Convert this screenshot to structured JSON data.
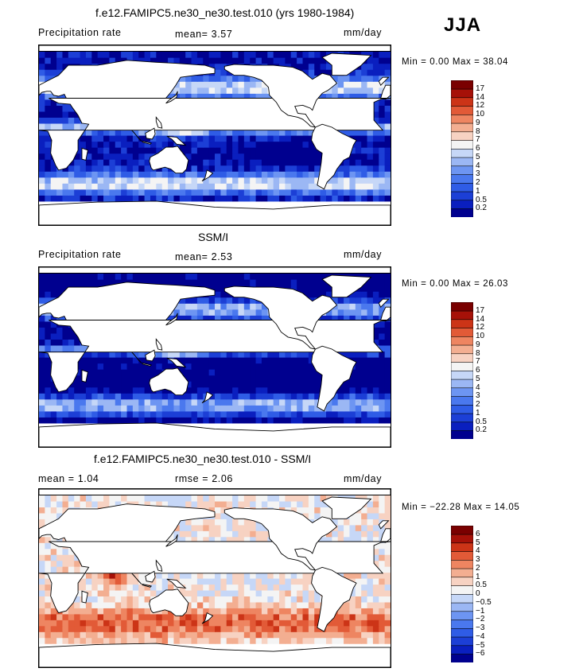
{
  "season": "JJA",
  "panels": [
    {
      "title": "f.e12.FAMIPC5.ne30_ne30.test.010 (yrs 1980-1984)",
      "left_label": "Precipitation rate",
      "mean_label": "mean=   3.57",
      "units": "mm/day",
      "minmax": "Min =    0.00 Max =  38.04",
      "field": "model"
    },
    {
      "title": "SSM/I",
      "left_label": "Precipitation rate",
      "mean_label": "mean=   2.53",
      "units": "mm/day",
      "minmax": "Min =    0.00 Max =  26.03",
      "field": "obs"
    },
    {
      "title": "f.e12.FAMIPC5.ne30_ne30.test.010 - SSM/I",
      "left_label": "mean =   1.04",
      "mean_label": "rmse =   2.06",
      "units": "mm/day",
      "minmax": "Min = −22.28 Max =  14.05",
      "field": "diff"
    }
  ],
  "chart_data": [
    {
      "type": "heatmap",
      "title": "f.e12.FAMIPC5.ne30_ne30.test.010 (yrs 1980-1984)",
      "variable": "Precipitation rate",
      "units": "mm/day",
      "mean": 3.57,
      "min": 0.0,
      "max": 38.04,
      "colorbar_levels": [
        "0.2",
        "0.5",
        "1",
        "2",
        "3",
        "4",
        "5",
        "6",
        "7",
        "8",
        "9",
        "10",
        "12",
        "14",
        "17"
      ]
    },
    {
      "type": "heatmap",
      "title": "SSM/I",
      "variable": "Precipitation rate",
      "units": "mm/day",
      "mean": 2.53,
      "min": 0.0,
      "max": 26.03,
      "colorbar_levels": [
        "0.2",
        "0.5",
        "1",
        "2",
        "3",
        "4",
        "5",
        "6",
        "7",
        "8",
        "9",
        "10",
        "12",
        "14",
        "17"
      ]
    },
    {
      "type": "heatmap",
      "title": "f.e12.FAMIPC5.ne30_ne30.test.010 - SSM/I",
      "units": "mm/day",
      "mean": 1.04,
      "rmse": 2.06,
      "min": -22.28,
      "max": 14.05,
      "colorbar_levels": [
        "−6",
        "−5",
        "−4",
        "−3",
        "−2",
        "−1",
        "−0.5",
        "0",
        "0.5",
        "1",
        "2",
        "3",
        "4",
        "5",
        "6"
      ]
    }
  ],
  "colors": {
    "precip": [
      "#00008f",
      "#0a1fbf",
      "#1c3fd6",
      "#2f5ce6",
      "#4a78ee",
      "#6d95f2",
      "#9bb7f4",
      "#c6d7f7",
      "#f4f4f4",
      "#f7d2c2",
      "#f3ae91",
      "#ee8561",
      "#e25a37",
      "#cc3417",
      "#a61108",
      "#7a0000"
    ],
    "diff": [
      "#00008f",
      "#0a1fbf",
      "#1c3fd6",
      "#2f5ce6",
      "#4a78ee",
      "#6d95f2",
      "#9bb7f4",
      "#c6d7f7",
      "#f4f4f4",
      "#f7d2c2",
      "#f3ae91",
      "#ee8561",
      "#e25a37",
      "#cc3417",
      "#a61108",
      "#7a0000"
    ]
  }
}
